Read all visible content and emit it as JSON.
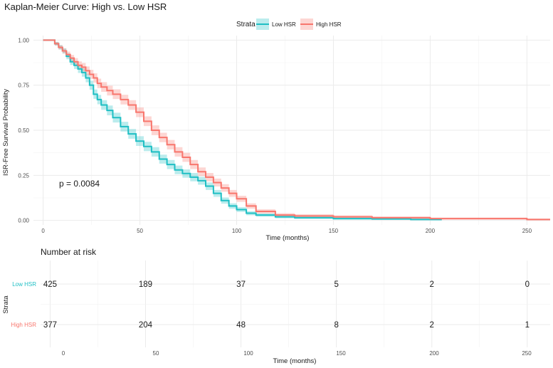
{
  "chart_data": [
    {
      "type": "line",
      "subtype": "kaplan-meier-step",
      "title": "Kaplan-Meier Curve: High vs. Low HSR",
      "xlabel": "Time (months)",
      "ylabel": "ISR-Free Survival Probability",
      "xlim": [
        -5,
        262
      ],
      "ylim": [
        -0.025,
        1.025
      ],
      "x_ticks": [
        0,
        50,
        100,
        150,
        200,
        250
      ],
      "y_ticks": [
        0,
        0.25,
        0.5,
        0.75,
        1.0
      ],
      "y_tick_labels": [
        "0.00",
        "0.25",
        "0.50",
        "0.75",
        "1.00"
      ],
      "legend": {
        "title": "Strata",
        "position": "top",
        "entries": [
          "Low HSR",
          "High HSR"
        ]
      },
      "annotation": "p = 0.0084",
      "series": [
        {
          "name": "Low HSR",
          "color": "#1fbfc4",
          "x": [
            0,
            4,
            6,
            8,
            10,
            12,
            14,
            16,
            18,
            20,
            22,
            24,
            26,
            28,
            30,
            33,
            36,
            40,
            44,
            48,
            52,
            56,
            60,
            64,
            68,
            72,
            76,
            80,
            84,
            88,
            92,
            96,
            100,
            105,
            110,
            120,
            130,
            150,
            170,
            190,
            206
          ],
          "y": [
            1.0,
            1.0,
            0.98,
            0.96,
            0.94,
            0.91,
            0.88,
            0.86,
            0.84,
            0.82,
            0.79,
            0.75,
            0.7,
            0.67,
            0.64,
            0.61,
            0.57,
            0.52,
            0.48,
            0.44,
            0.41,
            0.38,
            0.34,
            0.31,
            0.28,
            0.26,
            0.24,
            0.22,
            0.19,
            0.15,
            0.11,
            0.08,
            0.06,
            0.04,
            0.03,
            0.02,
            0.015,
            0.01,
            0.008,
            0.005,
            0.005
          ],
          "ci_halfwidth": [
            0,
            0,
            0.01,
            0.012,
            0.014,
            0.016,
            0.018,
            0.02,
            0.022,
            0.023,
            0.024,
            0.025,
            0.026,
            0.026,
            0.027,
            0.027,
            0.027,
            0.027,
            0.027,
            0.027,
            0.026,
            0.026,
            0.025,
            0.025,
            0.024,
            0.023,
            0.023,
            0.022,
            0.021,
            0.019,
            0.017,
            0.015,
            0.013,
            0.011,
            0.009,
            0.008,
            0.007,
            0.006,
            0.005,
            0.004,
            0.004
          ]
        },
        {
          "name": "High HSR",
          "color": "#f8766d",
          "x": [
            0,
            4,
            6,
            8,
            10,
            12,
            14,
            16,
            18,
            20,
            22,
            24,
            26,
            28,
            30,
            33,
            36,
            40,
            44,
            48,
            52,
            56,
            60,
            64,
            68,
            72,
            76,
            80,
            84,
            88,
            92,
            96,
            100,
            105,
            110,
            120,
            130,
            150,
            170,
            200,
            250,
            262
          ],
          "y": [
            1.0,
            1.0,
            0.98,
            0.96,
            0.94,
            0.92,
            0.9,
            0.88,
            0.86,
            0.85,
            0.83,
            0.81,
            0.79,
            0.76,
            0.74,
            0.72,
            0.7,
            0.67,
            0.64,
            0.6,
            0.55,
            0.5,
            0.46,
            0.42,
            0.38,
            0.35,
            0.31,
            0.27,
            0.24,
            0.21,
            0.18,
            0.15,
            0.12,
            0.08,
            0.05,
            0.03,
            0.025,
            0.02,
            0.015,
            0.01,
            0.005,
            0.005
          ],
          "ci_halfwidth": [
            0,
            0,
            0.01,
            0.012,
            0.014,
            0.016,
            0.018,
            0.02,
            0.022,
            0.023,
            0.024,
            0.025,
            0.026,
            0.026,
            0.027,
            0.027,
            0.027,
            0.027,
            0.027,
            0.027,
            0.027,
            0.027,
            0.026,
            0.026,
            0.026,
            0.025,
            0.025,
            0.024,
            0.023,
            0.022,
            0.021,
            0.019,
            0.017,
            0.015,
            0.012,
            0.01,
            0.009,
            0.008,
            0.007,
            0.006,
            0.005,
            0.005
          ]
        }
      ]
    },
    {
      "type": "table",
      "title": "Number at risk",
      "xlabel": "Time (months)",
      "ylabel": "Strata",
      "x_ticks": [
        0,
        50,
        100,
        150,
        200,
        250
      ],
      "rows": [
        {
          "name": "Low HSR",
          "color": "#1fbfc4",
          "values": [
            425,
            189,
            37,
            5,
            2,
            0
          ]
        },
        {
          "name": "High HSR",
          "color": "#f8766d",
          "values": [
            377,
            204,
            48,
            8,
            2,
            1
          ]
        }
      ]
    }
  ]
}
